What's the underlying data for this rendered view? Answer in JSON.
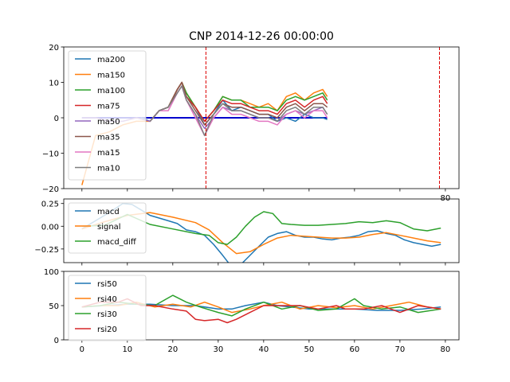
{
  "chart_data": [
    {
      "type": "line",
      "title": "CNP 2014-12-26 00:00:00",
      "xlim": [
        -4,
        83
      ],
      "ylim": [
        -20,
        20
      ],
      "yticks": [
        -20,
        -10,
        0,
        10,
        20
      ],
      "xticks": [
        0,
        10,
        20,
        30,
        40,
        50,
        60,
        70,
        80
      ],
      "visible_xticklabels": [
        "80"
      ],
      "legend": "upper-left",
      "vlines": [
        27.3,
        78.7
      ],
      "hline": {
        "y": 0,
        "x": [
          0,
          54
        ],
        "color": "#0000cc"
      },
      "series": [
        {
          "name": "ma200",
          "color": "#1f77b4",
          "x": [
            13,
            15,
            17,
            19,
            21,
            22,
            23,
            25,
            27,
            29,
            31,
            33,
            35,
            37,
            39,
            41,
            43,
            45,
            47,
            49,
            51,
            53,
            54
          ],
          "y": [
            0,
            -1,
            2,
            3,
            8,
            10,
            6,
            3,
            -2,
            1,
            5,
            2,
            3,
            2,
            1,
            1,
            -1,
            0,
            -1,
            1,
            0,
            0,
            -0.5
          ]
        },
        {
          "name": "ma150",
          "color": "#ff7f0e",
          "x": [
            0,
            3,
            6,
            9,
            12,
            15,
            17,
            19,
            21,
            22,
            23,
            25,
            27,
            29,
            31,
            33,
            35,
            37,
            39,
            41,
            43,
            45,
            47,
            49,
            51,
            53,
            54
          ],
          "y": [
            -19,
            -5,
            -4,
            -2,
            -1,
            -1,
            2,
            3,
            8,
            10,
            7,
            3,
            -1,
            2,
            6,
            5,
            5,
            4,
            3,
            4,
            2,
            6,
            7,
            5,
            7,
            8,
            6
          ]
        },
        {
          "name": "ma100",
          "color": "#2ca02c",
          "x": [
            15,
            17,
            19,
            21,
            22,
            23,
            25,
            27,
            29,
            31,
            33,
            35,
            37,
            39,
            41,
            43,
            45,
            47,
            49,
            51,
            53,
            54
          ],
          "y": [
            -1,
            2,
            3,
            8,
            10,
            7,
            3,
            -1,
            2,
            6,
            5,
            5,
            3,
            3,
            3,
            2,
            5,
            6,
            5,
            6,
            7,
            5
          ]
        },
        {
          "name": "ma75",
          "color": "#d62728",
          "x": [
            15,
            17,
            19,
            21,
            22,
            23,
            25,
            27,
            29,
            31,
            33,
            35,
            37,
            39,
            41,
            43,
            45,
            47,
            49,
            51,
            53,
            54
          ],
          "y": [
            -1,
            2,
            3,
            8,
            10,
            6,
            3,
            -1,
            2,
            5,
            4,
            4,
            3,
            2,
            2,
            1,
            4,
            5,
            3,
            5,
            6,
            4
          ]
        },
        {
          "name": "ma50",
          "color": "#9467bd",
          "x": [
            0,
            3,
            6,
            9,
            12,
            15,
            17,
            19,
            21,
            22,
            23,
            25,
            27,
            29,
            31,
            33,
            35,
            37,
            39,
            41,
            43,
            45,
            47,
            49,
            51,
            53,
            54
          ],
          "y": [
            0,
            0,
            -1,
            -1,
            0,
            -1,
            2,
            3,
            7,
            9,
            5,
            1,
            -3,
            0,
            3,
            2,
            2,
            1,
            0,
            0,
            -1,
            1,
            2,
            1,
            2,
            3,
            1
          ]
        },
        {
          "name": "ma35",
          "color": "#8c564b",
          "x": [
            15,
            17,
            19,
            21,
            22,
            23,
            25,
            27,
            29,
            31,
            33,
            35,
            37,
            39,
            41,
            43,
            45,
            47,
            49,
            51,
            53,
            54
          ],
          "y": [
            -1,
            2,
            3,
            8,
            10,
            6,
            2,
            -2,
            1,
            4,
            3,
            3,
            2,
            1,
            1,
            0,
            3,
            4,
            2,
            4,
            4,
            3
          ]
        },
        {
          "name": "ma15",
          "color": "#e377c2",
          "x": [
            15,
            17,
            19,
            21,
            22,
            23,
            25,
            27,
            29,
            31,
            33,
            35,
            37,
            39,
            41,
            43,
            45,
            47,
            49,
            51,
            53,
            54
          ],
          "y": [
            -1,
            2,
            2,
            7,
            9,
            5,
            0,
            -5,
            0,
            3,
            1,
            1,
            0,
            -1,
            -1,
            -2,
            1,
            2,
            0,
            2,
            2,
            0
          ]
        },
        {
          "name": "ma10",
          "color": "#7f7f7f",
          "x": [
            15,
            17,
            19,
            21,
            22,
            23,
            25,
            27,
            29,
            31,
            33,
            35,
            37,
            39,
            41,
            43,
            45,
            47,
            49,
            51,
            53,
            54
          ],
          "y": [
            -1,
            2,
            3,
            7,
            9,
            5,
            1,
            -5,
            1,
            4,
            2,
            2,
            1,
            0,
            0,
            -1,
            2,
            3,
            1,
            3,
            3,
            1
          ]
        }
      ]
    },
    {
      "type": "line",
      "xlim": [
        -4,
        83
      ],
      "ylim": [
        -0.4,
        0.3
      ],
      "yticks": [
        -0.25,
        0.0,
        0.25
      ],
      "ytick_labels": [
        "−0.25",
        "0.00",
        "0.25"
      ],
      "xticks": [
        0,
        10,
        20,
        30,
        40,
        50,
        60,
        70,
        80
      ],
      "legend": "upper-left",
      "series": [
        {
          "name": "macd",
          "color": "#1f77b4",
          "x": [
            0,
            3,
            6,
            9,
            11,
            13,
            15,
            17,
            19,
            21,
            23,
            25,
            27,
            29,
            31,
            33,
            35,
            37,
            39,
            41,
            43,
            45,
            47,
            49,
            51,
            53,
            55,
            57,
            59,
            61,
            63,
            65,
            67,
            69,
            71,
            73,
            75,
            77,
            79
          ],
          "y": [
            -0.03,
            0.06,
            0.15,
            0.25,
            0.24,
            0.18,
            0.12,
            0.09,
            0.06,
            0.03,
            -0.04,
            -0.06,
            -0.1,
            -0.2,
            -0.32,
            -0.45,
            -0.42,
            -0.32,
            -0.22,
            -0.12,
            -0.08,
            -0.06,
            -0.1,
            -0.12,
            -0.12,
            -0.14,
            -0.15,
            -0.13,
            -0.12,
            -0.1,
            -0.06,
            -0.05,
            -0.08,
            -0.1,
            -0.15,
            -0.18,
            -0.2,
            -0.22,
            -0.2
          ]
        },
        {
          "name": "signal",
          "color": "#ff7f0e",
          "x": [
            0,
            5,
            10,
            15,
            20,
            25,
            28,
            31,
            34,
            37,
            40,
            43,
            46,
            49,
            52,
            55,
            58,
            61,
            64,
            67,
            70,
            73,
            76,
            79
          ],
          "y": [
            -0.03,
            0.05,
            0.12,
            0.15,
            0.1,
            0.04,
            -0.04,
            -0.18,
            -0.3,
            -0.28,
            -0.2,
            -0.13,
            -0.1,
            -0.11,
            -0.12,
            -0.13,
            -0.13,
            -0.12,
            -0.09,
            -0.07,
            -0.1,
            -0.13,
            -0.16,
            -0.18
          ]
        },
        {
          "name": "macd_diff",
          "color": "#2ca02c",
          "x": [
            0,
            5,
            10,
            15,
            20,
            25,
            28,
            30,
            32,
            34,
            36,
            38,
            40,
            42,
            44,
            46,
            49,
            52,
            55,
            58,
            61,
            64,
            67,
            70,
            73,
            76,
            79
          ],
          "y": [
            0,
            0.01,
            0.13,
            0.02,
            -0.03,
            -0.08,
            -0.1,
            -0.18,
            -0.2,
            -0.12,
            0.0,
            0.1,
            0.16,
            0.14,
            0.03,
            0.02,
            0.01,
            0.01,
            0.02,
            0.03,
            0.05,
            0.04,
            0.06,
            0.04,
            -0.03,
            -0.05,
            -0.02
          ]
        }
      ]
    },
    {
      "type": "line",
      "xlim": [
        -4,
        83
      ],
      "ylim": [
        0,
        100
      ],
      "yticks": [
        0,
        50,
        100
      ],
      "xticks": [
        0,
        10,
        20,
        30,
        40,
        50,
        60,
        70,
        80
      ],
      "legend": "upper-left",
      "series": [
        {
          "name": "rsi50",
          "color": "#1f77b4",
          "x": [
            0,
            5,
            10,
            15,
            20,
            25,
            30,
            33,
            36,
            40,
            43,
            46,
            50,
            55,
            60,
            65,
            70,
            75,
            79
          ],
          "y": [
            48,
            50,
            52,
            52,
            50,
            50,
            45,
            45,
            50,
            55,
            50,
            48,
            45,
            45,
            45,
            43,
            43,
            45,
            48
          ]
        },
        {
          "name": "rsi40",
          "color": "#ff7f0e",
          "x": [
            0,
            4,
            8,
            12,
            16,
            20,
            24,
            27,
            30,
            33,
            37,
            40,
            44,
            48,
            52,
            56,
            60,
            64,
            68,
            72,
            76,
            79
          ],
          "y": [
            48,
            50,
            50,
            55,
            48,
            52,
            48,
            55,
            48,
            40,
            45,
            50,
            55,
            45,
            50,
            47,
            50,
            45,
            50,
            55,
            48,
            45
          ]
        },
        {
          "name": "rsi30",
          "color": "#2ca02c",
          "x": [
            0,
            4,
            8,
            12,
            16,
            20,
            23,
            26,
            30,
            33,
            36,
            40,
            44,
            48,
            52,
            56,
            60,
            62,
            66,
            70,
            74,
            79
          ],
          "y": [
            48,
            50,
            55,
            52,
            50,
            65,
            55,
            48,
            40,
            35,
            45,
            55,
            45,
            50,
            43,
            45,
            60,
            50,
            45,
            48,
            40,
            45
          ]
        },
        {
          "name": "rsi20",
          "color": "#d62728",
          "x": [
            0,
            4,
            8,
            10,
            13,
            16,
            20,
            23,
            25,
            27,
            30,
            32,
            34,
            37,
            40,
            44,
            48,
            52,
            56,
            58,
            62,
            66,
            70,
            74,
            79
          ],
          "y": [
            48,
            55,
            55,
            60,
            50,
            50,
            45,
            42,
            30,
            28,
            30,
            25,
            30,
            40,
            50,
            50,
            50,
            45,
            50,
            45,
            45,
            50,
            40,
            50,
            45
          ]
        }
      ]
    }
  ]
}
